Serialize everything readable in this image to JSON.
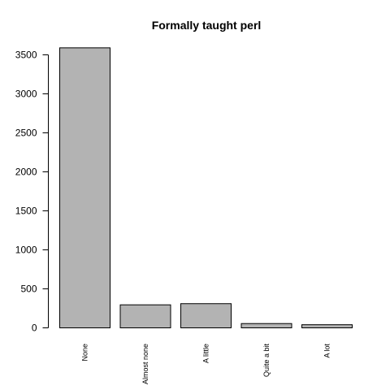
{
  "chart_data": {
    "type": "bar",
    "title": "Formally taught perl",
    "xlabel": "",
    "ylabel": "",
    "categories": [
      "None",
      "Almost none",
      "A little",
      "Quite a bit",
      "A lot"
    ],
    "values": [
      3590,
      295,
      310,
      55,
      40
    ],
    "ylim": [
      0,
      3500
    ],
    "yticks": [
      0,
      500,
      1000,
      1500,
      2000,
      2500,
      3000,
      3500
    ],
    "ytick_labels": [
      "0",
      "500",
      "1000",
      "1500",
      "2000",
      "2500",
      "3000",
      "3500"
    ],
    "grid": false,
    "legend": "none",
    "bar_color": "#b3b3b3",
    "bar_edge_color": "#000000"
  }
}
